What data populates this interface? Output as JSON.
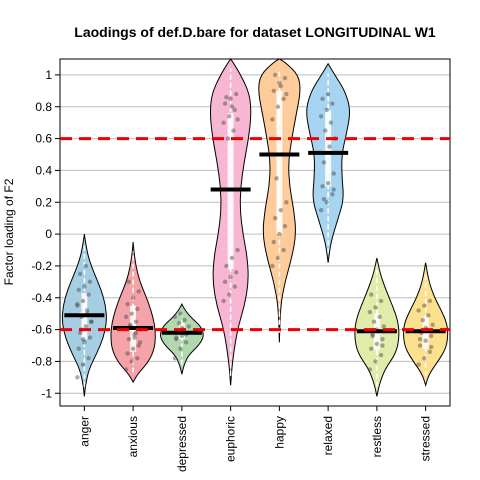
{
  "chart_data": {
    "type": "violin",
    "title": "Laodings of def.D.bare for dataset LONGITUDINAL W1",
    "xlabel": "",
    "ylabel": "Factor loading of F2",
    "ylim": [
      -1.08,
      1.1
    ],
    "yticks": [
      -1,
      -0.8,
      -0.6,
      -0.4,
      -0.2,
      0,
      0.2,
      0.4,
      0.6,
      0.8,
      1
    ],
    "grid": true,
    "reference_lines": [
      0.6,
      -0.6
    ],
    "reference_line_color": "#ee0000",
    "categories": [
      "anger",
      "anxious",
      "depressed",
      "euphoric",
      "happy",
      "relaxed",
      "restless",
      "stressed"
    ],
    "violins": [
      {
        "name": "anger",
        "color": "#a6cee3",
        "min": -1.02,
        "max": 0.0,
        "mean": -0.51,
        "q1": -0.66,
        "median": -0.5,
        "q3": -0.37,
        "density": [
          [
            -1.02,
            0
          ],
          [
            -0.95,
            0.05
          ],
          [
            -0.85,
            0.2
          ],
          [
            -0.75,
            0.55
          ],
          [
            -0.65,
            0.85
          ],
          [
            -0.55,
            1.0
          ],
          [
            -0.45,
            0.95
          ],
          [
            -0.35,
            0.75
          ],
          [
            -0.25,
            0.45
          ],
          [
            -0.15,
            0.18
          ],
          [
            -0.05,
            0.05
          ],
          [
            0.0,
            0
          ]
        ],
        "points": [
          -0.9,
          -0.82,
          -0.78,
          -0.72,
          -0.68,
          -0.65,
          -0.62,
          -0.58,
          -0.55,
          -0.52,
          -0.48,
          -0.45,
          -0.42,
          -0.38,
          -0.35,
          -0.33,
          -0.3,
          -0.25,
          -0.2,
          -0.55,
          -0.6,
          -0.5,
          -0.44,
          -0.66
        ]
      },
      {
        "name": "anxious",
        "color": "#f4a3a8",
        "min": -0.93,
        "max": -0.05,
        "mean": -0.59,
        "q1": -0.74,
        "median": -0.6,
        "q3": -0.45,
        "density": [
          [
            -0.93,
            0
          ],
          [
            -0.88,
            0.2
          ],
          [
            -0.8,
            0.7
          ],
          [
            -0.72,
            0.95
          ],
          [
            -0.64,
            1.0
          ],
          [
            -0.56,
            0.95
          ],
          [
            -0.48,
            0.8
          ],
          [
            -0.4,
            0.6
          ],
          [
            -0.3,
            0.3
          ],
          [
            -0.2,
            0.12
          ],
          [
            -0.1,
            0.03
          ],
          [
            -0.05,
            0
          ]
        ],
        "points": [
          -0.85,
          -0.8,
          -0.78,
          -0.75,
          -0.72,
          -0.7,
          -0.66,
          -0.63,
          -0.6,
          -0.58,
          -0.55,
          -0.52,
          -0.5,
          -0.47,
          -0.44,
          -0.4,
          -0.36,
          -0.3,
          -0.65,
          -0.68,
          -0.57,
          -0.62
        ]
      },
      {
        "name": "depressed",
        "color": "#b2d8b0",
        "min": -0.88,
        "max": -0.44,
        "mean": -0.62,
        "q1": -0.66,
        "median": -0.62,
        "q3": -0.56,
        "density": [
          [
            -0.88,
            0
          ],
          [
            -0.82,
            0.1
          ],
          [
            -0.76,
            0.3
          ],
          [
            -0.7,
            0.75
          ],
          [
            -0.64,
            1.0
          ],
          [
            -0.58,
            0.85
          ],
          [
            -0.53,
            0.45
          ],
          [
            -0.48,
            0.15
          ],
          [
            -0.44,
            0
          ]
        ],
        "points": [
          -0.78,
          -0.72,
          -0.68,
          -0.66,
          -0.64,
          -0.62,
          -0.61,
          -0.6,
          -0.58,
          -0.56,
          -0.54,
          -0.52,
          -0.5,
          -0.63,
          -0.65,
          -0.59
        ]
      },
      {
        "name": "euphoric",
        "color": "#f7b6d2",
        "min": -0.95,
        "max": 1.1,
        "mean": 0.28,
        "q1": -0.22,
        "median": 0.28,
        "q3": 0.76,
        "density": [
          [
            -0.95,
            0
          ],
          [
            -0.8,
            0.08
          ],
          [
            -0.6,
            0.3
          ],
          [
            -0.45,
            0.62
          ],
          [
            -0.3,
            0.8
          ],
          [
            -0.15,
            0.75
          ],
          [
            0.0,
            0.55
          ],
          [
            0.15,
            0.42
          ],
          [
            0.3,
            0.45
          ],
          [
            0.45,
            0.6
          ],
          [
            0.6,
            0.8
          ],
          [
            0.75,
            0.92
          ],
          [
            0.88,
            0.85
          ],
          [
            1.0,
            0.45
          ],
          [
            1.08,
            0.1
          ],
          [
            1.1,
            0
          ]
        ],
        "points": [
          -0.42,
          -0.38,
          -0.33,
          -0.3,
          -0.27,
          -0.24,
          -0.2,
          -0.15,
          -0.1,
          0.6,
          0.65,
          0.7,
          0.74,
          0.78,
          0.82,
          0.85,
          0.88,
          0.86,
          0.8,
          0.72
        ]
      },
      {
        "name": "happy",
        "color": "#fdcc9a",
        "min": -0.68,
        "max": 1.1,
        "mean": 0.5,
        "q1": 0.0,
        "median": 0.5,
        "q3": 0.9,
        "density": [
          [
            -0.68,
            0
          ],
          [
            -0.45,
            0.05
          ],
          [
            -0.3,
            0.25
          ],
          [
            -0.15,
            0.55
          ],
          [
            0.0,
            0.75
          ],
          [
            0.15,
            0.65
          ],
          [
            0.3,
            0.45
          ],
          [
            0.45,
            0.4
          ],
          [
            0.6,
            0.55
          ],
          [
            0.75,
            0.75
          ],
          [
            0.9,
            0.95
          ],
          [
            1.0,
            0.85
          ],
          [
            1.08,
            0.25
          ],
          [
            1.1,
            0
          ]
        ],
        "points": [
          -0.2,
          -0.15,
          -0.1,
          -0.05,
          0.0,
          0.05,
          0.1,
          0.15,
          0.2,
          0.35,
          0.5,
          0.72,
          0.8,
          0.85,
          0.9,
          0.95,
          0.98,
          1.0,
          0.93,
          0.88
        ]
      },
      {
        "name": "relaxed",
        "color": "#a7d4f0",
        "min": -0.18,
        "max": 1.07,
        "mean": 0.51,
        "q1": 0.3,
        "median": 0.52,
        "q3": 0.78,
        "density": [
          [
            -0.18,
            0
          ],
          [
            -0.05,
            0.12
          ],
          [
            0.1,
            0.45
          ],
          [
            0.22,
            0.7
          ],
          [
            0.35,
            0.62
          ],
          [
            0.5,
            0.6
          ],
          [
            0.65,
            0.85
          ],
          [
            0.78,
            1.0
          ],
          [
            0.9,
            0.75
          ],
          [
            1.0,
            0.3
          ],
          [
            1.07,
            0
          ]
        ],
        "points": [
          0.15,
          0.2,
          0.25,
          0.3,
          0.32,
          0.38,
          0.45,
          0.55,
          0.6,
          0.65,
          0.7,
          0.74,
          0.78,
          0.82,
          0.85,
          0.88,
          0.28,
          0.22
        ]
      },
      {
        "name": "restless",
        "color": "#e1ecaa",
        "min": -1.02,
        "max": -0.15,
        "mean": -0.61,
        "q1": -0.73,
        "median": -0.62,
        "q3": -0.5,
        "density": [
          [
            -1.02,
            0
          ],
          [
            -0.95,
            0.1
          ],
          [
            -0.85,
            0.35
          ],
          [
            -0.75,
            0.85
          ],
          [
            -0.65,
            1.0
          ],
          [
            -0.55,
            0.95
          ],
          [
            -0.45,
            0.7
          ],
          [
            -0.35,
            0.4
          ],
          [
            -0.25,
            0.15
          ],
          [
            -0.15,
            0
          ]
        ],
        "points": [
          -0.85,
          -0.8,
          -0.76,
          -0.72,
          -0.69,
          -0.66,
          -0.63,
          -0.61,
          -0.58,
          -0.55,
          -0.52,
          -0.49,
          -0.46,
          -0.42,
          -0.38,
          -0.6,
          -0.7,
          -0.64
        ]
      },
      {
        "name": "stressed",
        "color": "#fde08e",
        "min": -0.95,
        "max": -0.18,
        "mean": -0.61,
        "q1": -0.72,
        "median": -0.62,
        "q3": -0.52,
        "density": [
          [
            -0.95,
            0
          ],
          [
            -0.88,
            0.15
          ],
          [
            -0.8,
            0.55
          ],
          [
            -0.72,
            0.9
          ],
          [
            -0.64,
            1.0
          ],
          [
            -0.56,
            0.95
          ],
          [
            -0.48,
            0.7
          ],
          [
            -0.4,
            0.4
          ],
          [
            -0.3,
            0.15
          ],
          [
            -0.18,
            0
          ]
        ],
        "points": [
          -0.82,
          -0.78,
          -0.74,
          -0.7,
          -0.67,
          -0.64,
          -0.62,
          -0.6,
          -0.57,
          -0.54,
          -0.51,
          -0.48,
          -0.45,
          -0.42,
          -0.66,
          -0.59,
          -0.71
        ]
      }
    ]
  }
}
